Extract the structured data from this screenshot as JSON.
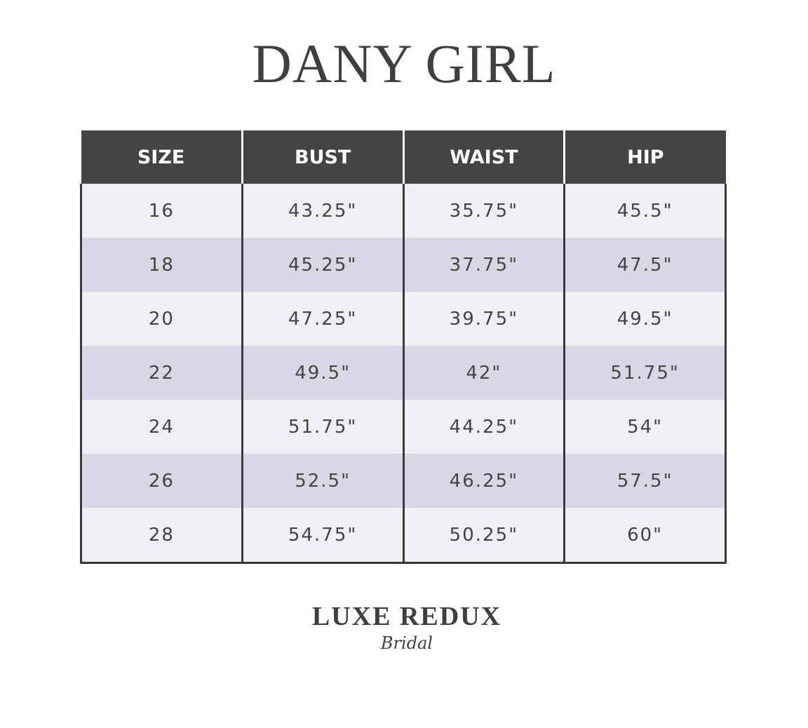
{
  "title": "DANY GIRL",
  "table": {
    "headers": [
      "SIZE",
      "BUST",
      "WAIST",
      "HIP"
    ],
    "rows": [
      [
        "16",
        "43.25\"",
        "35.75\"",
        "45.5\""
      ],
      [
        "18",
        "45.25\"",
        "37.75\"",
        "47.5\""
      ],
      [
        "20",
        "47.25\"",
        "39.75\"",
        "49.5\""
      ],
      [
        "22",
        "49.5\"",
        "42\"",
        "51.75\""
      ],
      [
        "24",
        "51.75\"",
        "44.25\"",
        "54\""
      ],
      [
        "26",
        "52.5\"",
        "46.25\"",
        "57.5\""
      ],
      [
        "28",
        "54.75\"",
        "50.25\"",
        "60\""
      ]
    ]
  },
  "logo": {
    "main": "LUXE REDUX",
    "sub": "Bridal"
  },
  "colors": {
    "header_bg": "#444444",
    "row_light": "#f0eff5",
    "row_dark": "#d9d7e6",
    "text": "#444444"
  }
}
